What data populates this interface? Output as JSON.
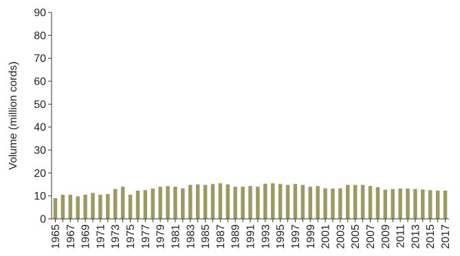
{
  "chart_data": {
    "type": "bar",
    "title": "",
    "xlabel": "",
    "ylabel": "Volume (million cords)",
    "ylim": [
      0,
      90
    ],
    "yticks": [
      0,
      10,
      20,
      30,
      40,
      50,
      60,
      70,
      80,
      90
    ],
    "grid": false,
    "legend": "none",
    "bar_color": "#9c9a60",
    "axis_color": "#333333",
    "categories": [
      "1965",
      "1966",
      "1967",
      "1968",
      "1969",
      "1970",
      "1971",
      "1972",
      "1973",
      "1974",
      "1975",
      "1976",
      "1977",
      "1978",
      "1979",
      "1980",
      "1981",
      "1982",
      "1983",
      "1984",
      "1985",
      "1986",
      "1987",
      "1988",
      "1989",
      "1990",
      "1991",
      "1992",
      "1993",
      "1994",
      "1995",
      "1996",
      "1997",
      "1998",
      "1999",
      "2000",
      "2001",
      "2002",
      "2003",
      "2004",
      "2005",
      "2006",
      "2007",
      "2008",
      "2009",
      "2010",
      "2011",
      "2012",
      "2013",
      "2014",
      "2015",
      "2016",
      "2017"
    ],
    "values": [
      9.0,
      10.5,
      10.5,
      9.8,
      10.5,
      11.3,
      10.5,
      10.8,
      13.0,
      14.0,
      10.5,
      12.3,
      12.5,
      13.2,
      14.0,
      14.3,
      14.0,
      13.3,
      14.8,
      15.0,
      14.8,
      15.2,
      15.5,
      15.0,
      14.0,
      14.0,
      14.3,
      14.0,
      15.3,
      15.5,
      15.2,
      14.8,
      15.2,
      14.8,
      14.0,
      14.3,
      13.3,
      13.2,
      13.3,
      14.8,
      14.8,
      14.8,
      14.3,
      13.8,
      12.7,
      13.0,
      13.2,
      13.2,
      13.0,
      12.8,
      12.5,
      12.3,
      12.3
    ],
    "xtick_labels": [
      "1965",
      "1967",
      "1969",
      "1971",
      "1973",
      "1975",
      "1977",
      "1979",
      "1981",
      "1983",
      "1985",
      "1987",
      "1989",
      "1991",
      "1993",
      "1995",
      "1997",
      "1999",
      "2001",
      "2003",
      "2005",
      "2007",
      "2009",
      "2011",
      "2013",
      "2015",
      "2017"
    ]
  }
}
